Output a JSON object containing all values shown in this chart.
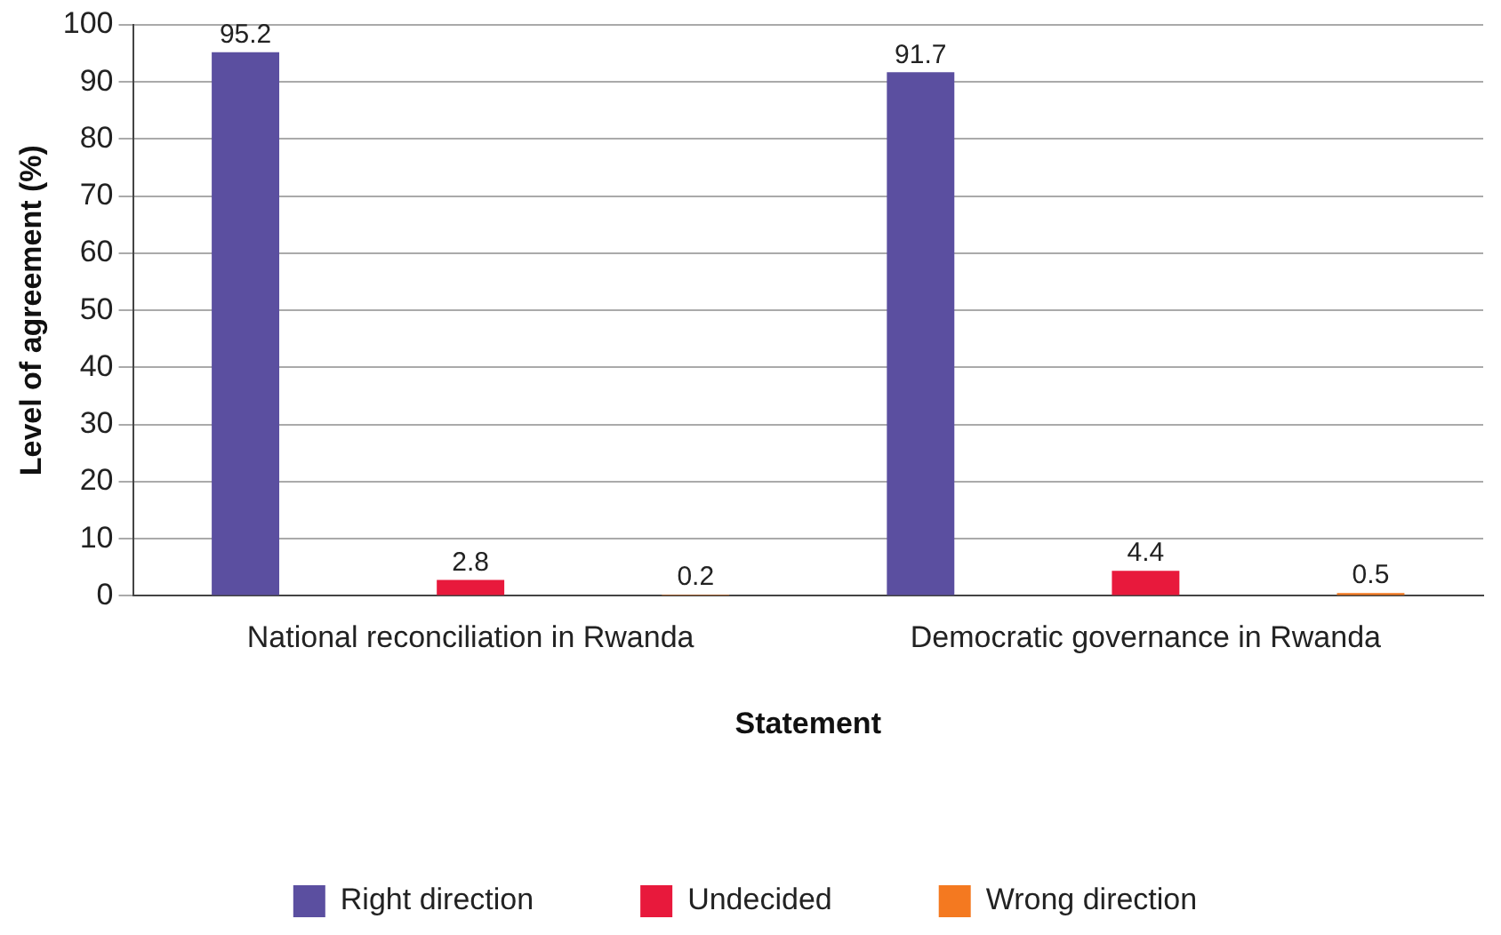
{
  "chart_data": {
    "type": "bar",
    "xlabel": "Statement",
    "ylabel": "Level of agreement (%)",
    "categories": [
      "National reconciliation in Rwanda",
      "Democratic governance in Rwanda"
    ],
    "series": [
      {
        "name": "Right direction",
        "color": "#5b4fa0",
        "values": [
          95.2,
          91.7
        ]
      },
      {
        "name": "Undecided",
        "color": "#e8193c",
        "values": [
          2.8,
          4.4
        ]
      },
      {
        "name": "Wrong direction",
        "color": "#f47920",
        "values": [
          0.2,
          0.5
        ]
      }
    ],
    "ylim": [
      0,
      100
    ],
    "yticks": [
      0,
      10,
      20,
      30,
      40,
      50,
      60,
      70,
      80,
      90,
      100
    ],
    "grid": "y",
    "legend": "bottom",
    "data_labels": true
  }
}
